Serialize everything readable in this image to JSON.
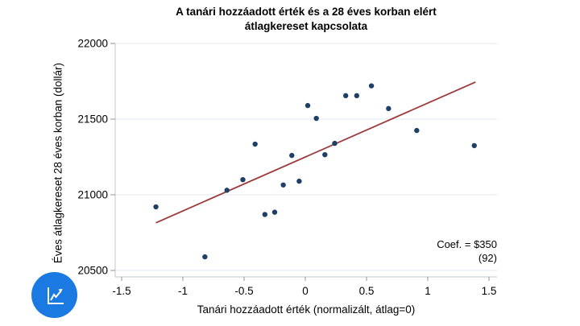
{
  "title_lines": [
    "A tanári hozzáadott érték és a 28 éves korban elért",
    "átlagkereset kapcsolata"
  ],
  "colors": {
    "point": "#1f4066",
    "trend": "#9e3a3c",
    "grid": "#e6eef3",
    "axis": "#c3c7ca",
    "tick": "#8f969b",
    "logo_blue": "#1b7ae2",
    "icon_stroke": "#ffffff"
  },
  "chart_data": {
    "type": "scatter",
    "title": "A tanári hozzáadott érték és a 28 éves korban elért átlagkereset kapcsolata",
    "xlabel": "Tanári hozzáadott érték (normalizált, átlag=0)",
    "ylabel": "Éves átlagkereset 28 éves korban (dollár)",
    "xlim": [
      -1.55,
      1.55
    ],
    "ylim": [
      20450,
      22000
    ],
    "grid": "horizontal-only",
    "legend": "none",
    "xticks": [
      {
        "v": -1.5,
        "label": "-1.5"
      },
      {
        "v": -1.0,
        "label": "-1"
      },
      {
        "v": -0.5,
        "label": "-0.5"
      },
      {
        "v": 0.0,
        "label": "0"
      },
      {
        "v": 0.5,
        "label": "0.5"
      },
      {
        "v": 1.0,
        "label": "1"
      },
      {
        "v": 1.5,
        "label": "1.5"
      }
    ],
    "yticks": [
      {
        "v": 20500,
        "label": "20500"
      },
      {
        "v": 21000,
        "label": "21000"
      },
      {
        "v": 21500,
        "label": "21500"
      },
      {
        "v": 22000,
        "label": "22000"
      }
    ],
    "points": [
      [
        -1.22,
        20920
      ],
      [
        -0.82,
        20590
      ],
      [
        -0.64,
        21030
      ],
      [
        -0.51,
        21100
      ],
      [
        -0.41,
        21335
      ],
      [
        -0.33,
        20870
      ],
      [
        -0.25,
        20885
      ],
      [
        -0.18,
        21065
      ],
      [
        -0.11,
        21260
      ],
      [
        -0.05,
        21090
      ],
      [
        0.02,
        21590
      ],
      [
        0.09,
        21505
      ],
      [
        0.16,
        21265
      ],
      [
        0.24,
        21340
      ],
      [
        0.33,
        21655
      ],
      [
        0.42,
        21655
      ],
      [
        0.54,
        21720
      ],
      [
        0.68,
        21570
      ],
      [
        0.91,
        21425
      ],
      [
        1.38,
        21325
      ]
    ],
    "trend_line": {
      "x1": -1.22,
      "y1": 20815,
      "x2": 1.39,
      "y2": 21745
    },
    "annotation": {
      "lines": [
        "Coef. = $350",
        "(92)"
      ]
    }
  },
  "logo": {
    "icon": "line-chart-icon",
    "color": "#1b7ae2"
  }
}
